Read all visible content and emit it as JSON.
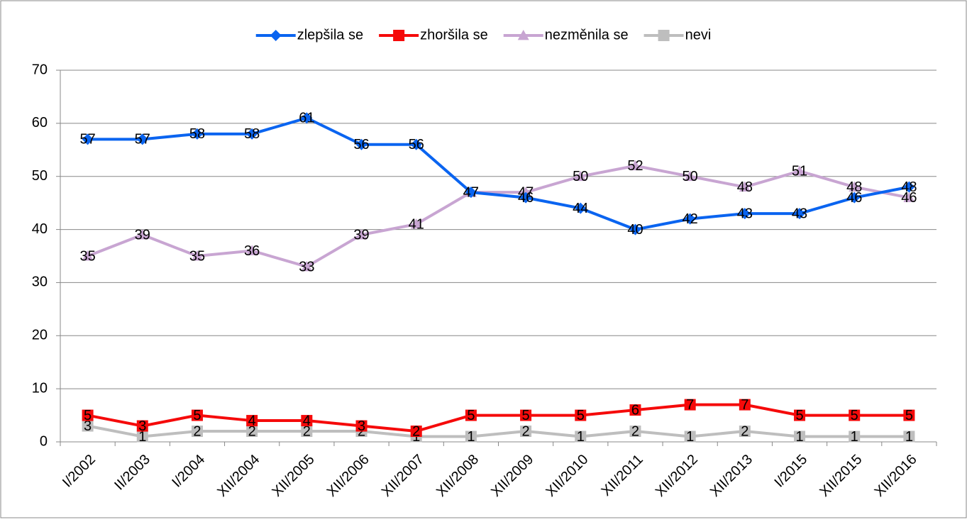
{
  "chart_data": {
    "type": "line",
    "categories": [
      "I/2002",
      "II/2003",
      "I/2004",
      "XII/2004",
      "XII/2005",
      "XII/2006",
      "XII/2007",
      "XII/2008",
      "XII/2009",
      "XII/2010",
      "XII/2011",
      "XII/2012",
      "XII/2013",
      "I/2015",
      "XII/2015",
      "XII/2016"
    ],
    "series": [
      {
        "name": "zlepšila se",
        "color": "#0a64f0",
        "marker": "diamond",
        "values": [
          57,
          57,
          58,
          58,
          61,
          56,
          56,
          47,
          46,
          44,
          40,
          42,
          43,
          43,
          46,
          48
        ]
      },
      {
        "name": "zhoršila se",
        "color": "#f50a0a",
        "marker": "square",
        "values": [
          5,
          3,
          5,
          4,
          4,
          3,
          2,
          5,
          5,
          5,
          6,
          7,
          7,
          5,
          5,
          5
        ]
      },
      {
        "name": "nezměnila se",
        "color": "#c8a5d2",
        "marker": "triangle",
        "values": [
          35,
          39,
          35,
          36,
          33,
          39,
          41,
          47,
          47,
          50,
          52,
          50,
          48,
          51,
          48,
          46
        ]
      },
      {
        "name": "nevi",
        "color": "#bebebe",
        "marker": "square",
        "values": [
          3,
          1,
          2,
          2,
          2,
          2,
          1,
          1,
          2,
          1,
          2,
          1,
          2,
          1,
          1,
          1
        ]
      }
    ],
    "ylim": [
      0,
      70
    ],
    "yticks": [
      0,
      10,
      20,
      30,
      40,
      50,
      60,
      70
    ],
    "grid": true,
    "legend": "top"
  }
}
